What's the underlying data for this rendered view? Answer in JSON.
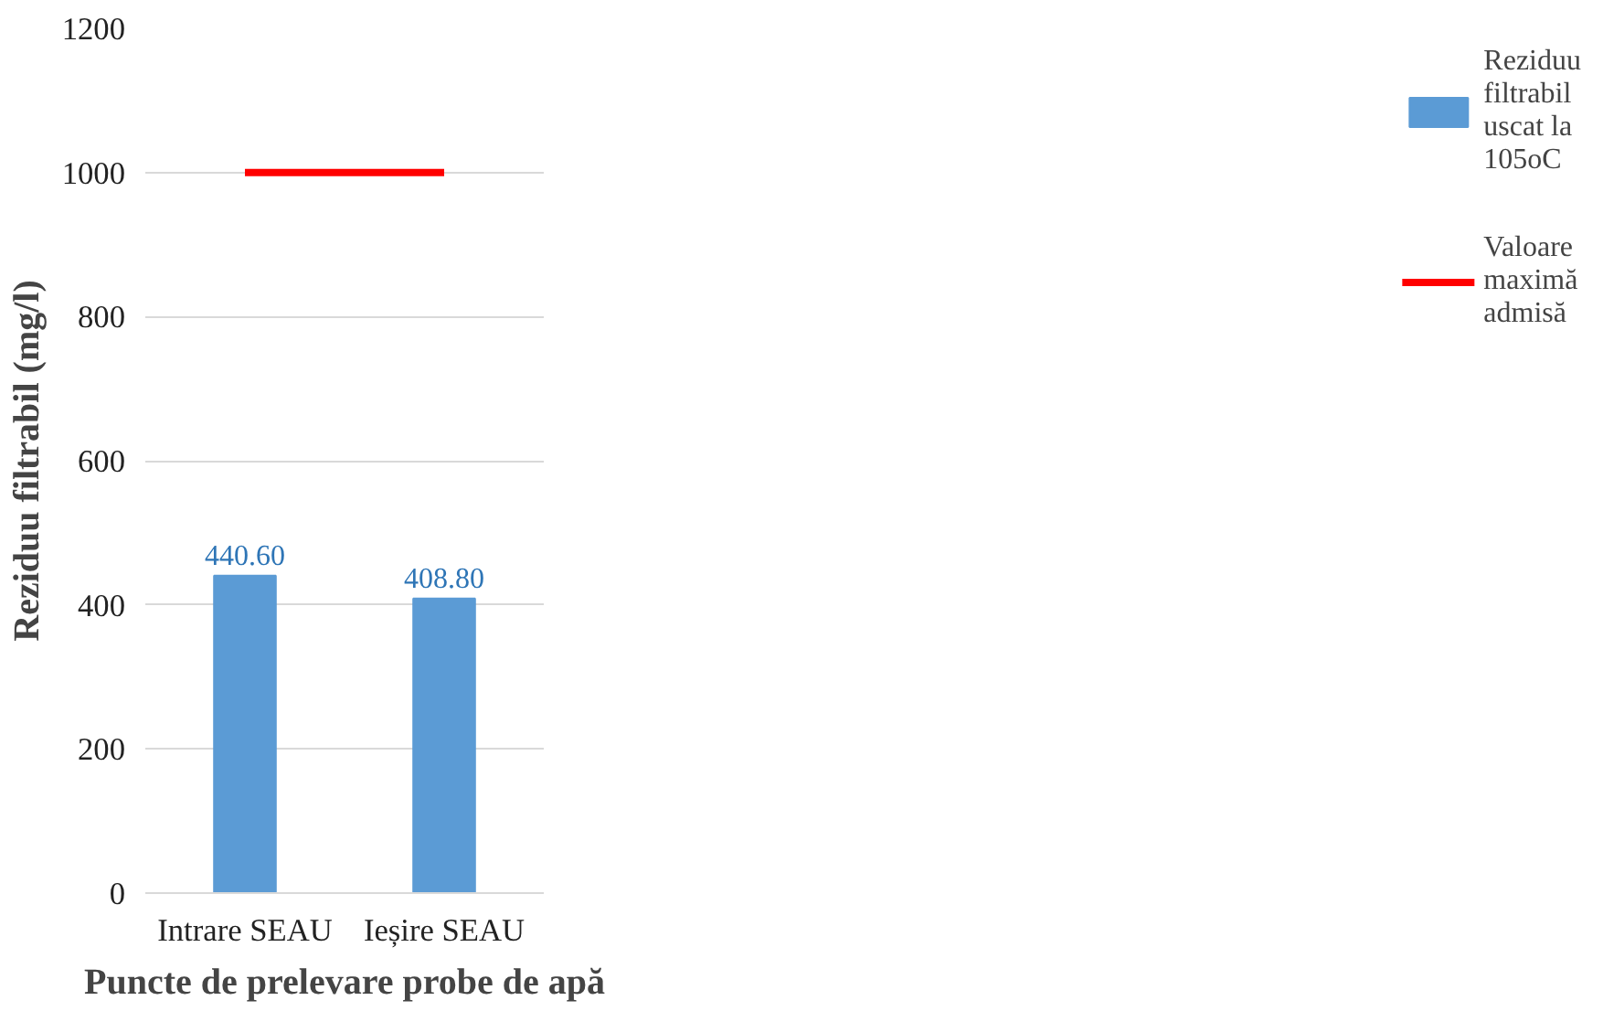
{
  "chart_data": {
    "type": "bar",
    "xlabel": "Puncte de prelevare probe de apă",
    "ylabel": "Reziduu filtrabil (mg/l)",
    "categories": [
      "Intrare SEAU",
      "Ieșire SEAU"
    ],
    "series": [
      {
        "name": "Reziduu filtrabil uscat la 105oC",
        "color": "#5b9bd5",
        "values": [
          440.6,
          408.8
        ],
        "value_labels": [
          "440.60",
          "408.80"
        ]
      },
      {
        "name": "Valoare maximă admisă",
        "type": "line",
        "color": "#ff0000",
        "values": [
          1000,
          1000
        ]
      }
    ],
    "ylim": [
      0,
      1200
    ],
    "yticks": [
      0,
      200,
      400,
      600,
      800,
      1000,
      1200
    ],
    "grid": "y",
    "legend": "right"
  }
}
